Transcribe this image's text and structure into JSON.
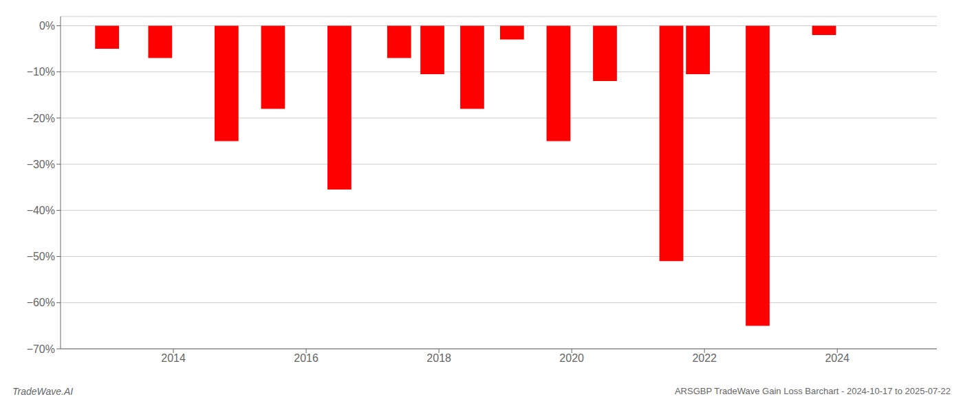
{
  "chart_data": {
    "type": "bar",
    "x": [
      2013.0,
      2013.8,
      2014.8,
      2015.5,
      2016.5,
      2017.4,
      2017.9,
      2018.5,
      2019.1,
      2019.8,
      2020.5,
      2021.5,
      2021.9,
      2022.8,
      2023.8
    ],
    "values": [
      -5.0,
      -7.0,
      -25.0,
      -18.0,
      -35.5,
      -7.0,
      -10.5,
      -18.0,
      -3.0,
      -25.0,
      -12.0,
      -51.0,
      -10.5,
      -65.0,
      -2.0
    ],
    "color": "#ff0000",
    "ylim": [
      -70,
      2
    ],
    "yticks": [
      {
        "value": 0,
        "label": "0%"
      },
      {
        "value": -10,
        "label": "−10%"
      },
      {
        "value": -20,
        "label": "−20%"
      },
      {
        "value": -30,
        "label": "−30%"
      },
      {
        "value": -40,
        "label": "−40%"
      },
      {
        "value": -50,
        "label": "−50%"
      },
      {
        "value": -60,
        "label": "−60%"
      },
      {
        "value": -70,
        "label": "−70%"
      }
    ],
    "xlim": [
      2012.3,
      2025.5
    ],
    "xticks": [
      2014,
      2016,
      2018,
      2020,
      2022,
      2024
    ],
    "grid": true,
    "annotations": [
      "TradeWave.AI",
      "ARSGBP TradeWave Gain Loss Barchart - 2024-10-17 to 2025-07-22"
    ]
  }
}
